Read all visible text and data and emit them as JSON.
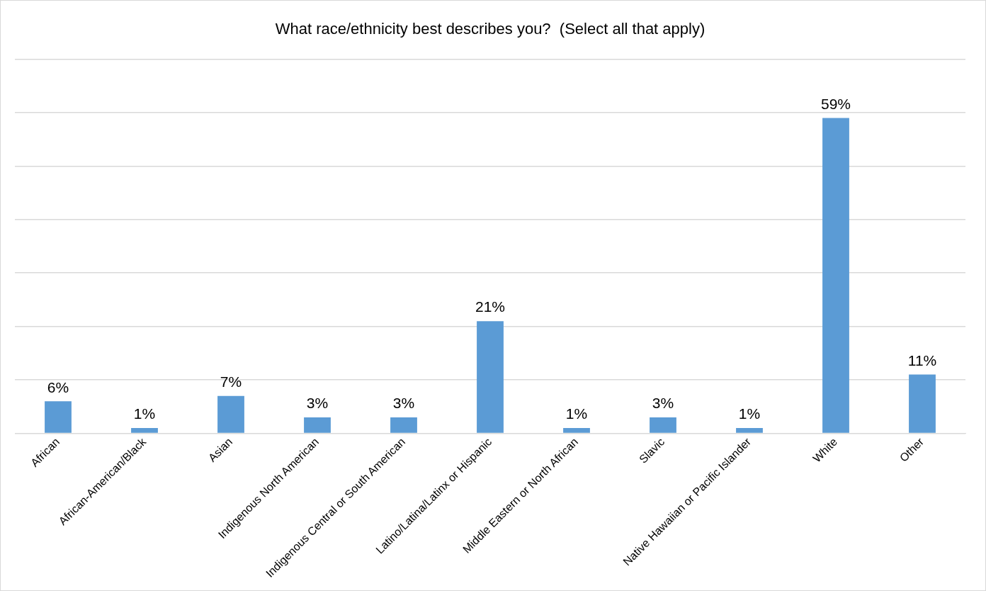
{
  "chart_data": {
    "type": "bar",
    "title": "What race/ethnicity best describes you?  (Select all that apply)",
    "categories": [
      "African",
      "African-American/Black",
      "Asian",
      "Indigenous North American",
      "Indigenous Central or South American",
      "Latino/Latina/Latinx or Hispanic",
      "Middle Eastern or North African",
      "Slavic",
      "Native Hawaiian or Pacific Islander",
      "White",
      "Other"
    ],
    "values": [
      6,
      1,
      7,
      3,
      3,
      21,
      1,
      3,
      1,
      59,
      11
    ],
    "value_labels": [
      "6%",
      "1%",
      "7%",
      "3%",
      "3%",
      "21%",
      "1%",
      "3%",
      "1%",
      "59%",
      "11%"
    ],
    "color": "#5b9bd5",
    "ylim": [
      0,
      70
    ],
    "yticks": [
      {
        "value": 0,
        "label": null
      },
      {
        "value": 10,
        "label": null
      },
      {
        "value": 20,
        "label": null
      },
      {
        "value": 30,
        "label": null
      },
      {
        "value": 40,
        "label": null
      },
      {
        "value": 50,
        "label": null
      },
      {
        "value": 60,
        "label": null
      },
      {
        "value": 70,
        "label": null
      }
    ],
    "grid": "y",
    "tick_labels": "x",
    "legend": false
  }
}
